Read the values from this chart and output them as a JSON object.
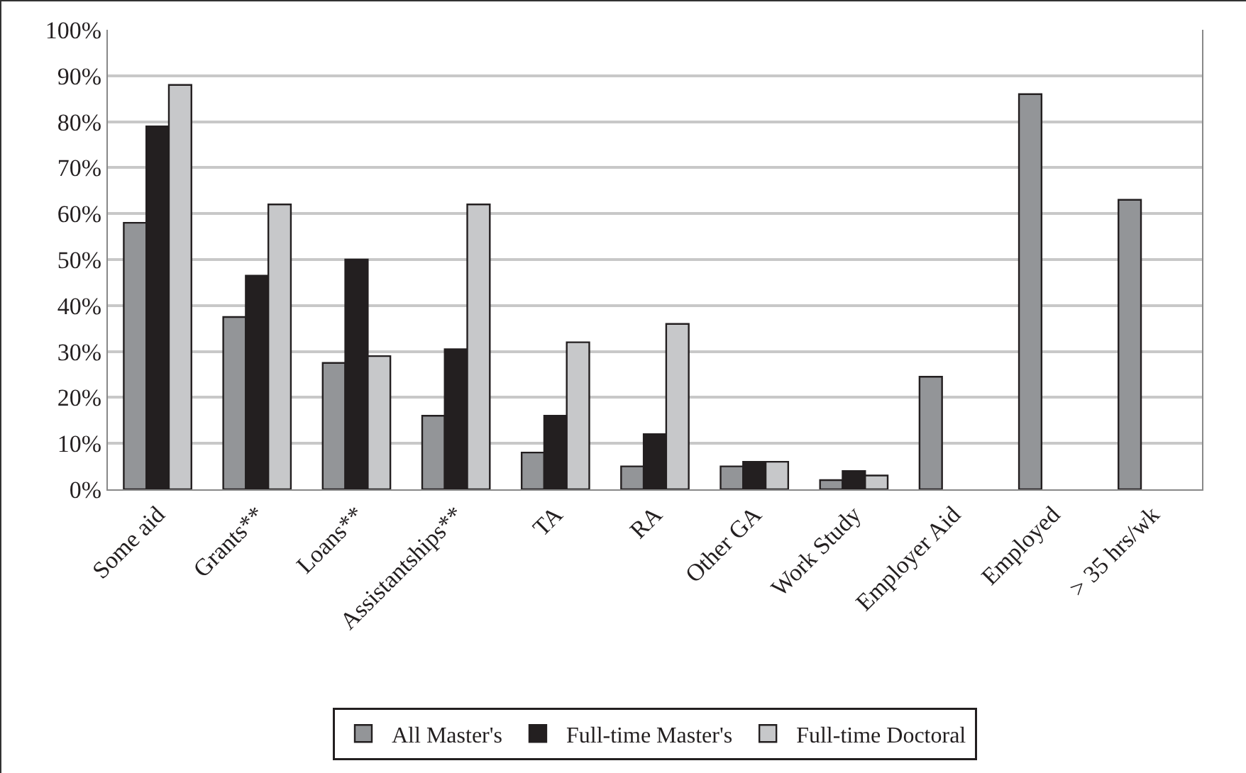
{
  "chart_data": {
    "type": "bar",
    "categories": [
      "Some aid",
      "Grants**",
      "Loans**",
      "Assistantships**",
      "TA",
      "RA",
      "Other GA",
      "Work Study",
      "Employer Aid",
      "Employed",
      "> 35 hrs/wk"
    ],
    "series": [
      {
        "name": "All Master's",
        "color": "#939598",
        "values": [
          58,
          37.5,
          27.5,
          16,
          8,
          5,
          5,
          2,
          24.5,
          86,
          63
        ]
      },
      {
        "name": "Full-time Master's",
        "color": "#231f20",
        "values": [
          79,
          46.5,
          50,
          30.5,
          16,
          12,
          6,
          4,
          null,
          null,
          null
        ]
      },
      {
        "name": "Full-time Doctoral",
        "color": "#c7c8ca",
        "values": [
          88,
          62,
          29,
          62,
          32,
          36,
          6,
          3,
          null,
          null,
          null
        ]
      }
    ],
    "ylim": [
      0,
      100
    ],
    "yticks": [
      {
        "value": 0,
        "label": "0%"
      },
      {
        "value": 10,
        "label": "10%"
      },
      {
        "value": 20,
        "label": "20%"
      },
      {
        "value": 30,
        "label": "30%"
      },
      {
        "value": 40,
        "label": "40%"
      },
      {
        "value": 50,
        "label": "50%"
      },
      {
        "value": 60,
        "label": "60%"
      },
      {
        "value": 70,
        "label": "70%"
      },
      {
        "value": 80,
        "label": "80%"
      },
      {
        "value": 90,
        "label": "90%"
      },
      {
        "value": 100,
        "label": "100%"
      }
    ],
    "grid": "y",
    "legend": "bottom"
  }
}
